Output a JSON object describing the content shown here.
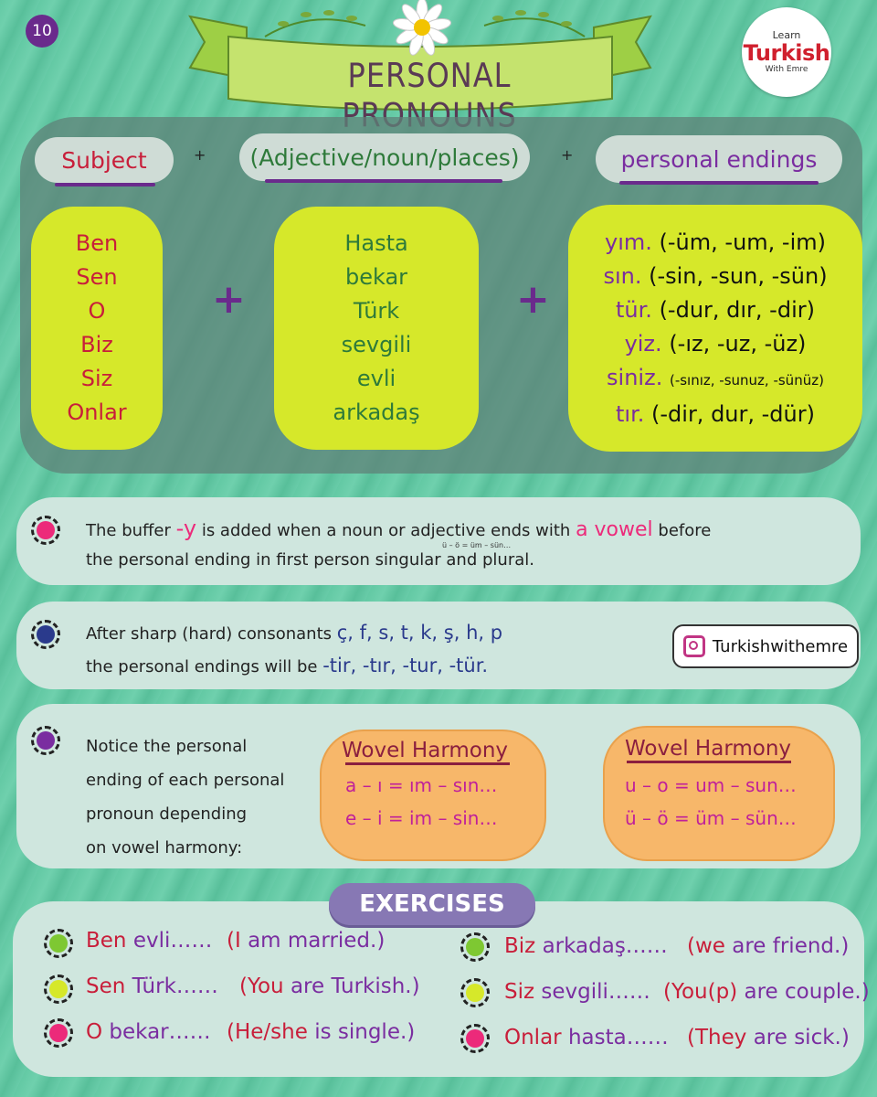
{
  "page_number": "10",
  "title": "PERSONAL PRONOUNS",
  "logo": {
    "line1": "Learn",
    "line2": "Turkish",
    "line3": "With Emre"
  },
  "header": {
    "subject": "Subject",
    "middle": "(Adjective/noun/places)",
    "endings": "personal endings",
    "plus": "+"
  },
  "pronouns": [
    "Ben",
    "Sen",
    "O",
    "Biz",
    "Siz",
    "Onlar"
  ],
  "words": [
    "Hasta",
    "bekar",
    "Türk",
    "sevgili",
    "evli",
    "arkadaş"
  ],
  "endings": [
    {
      "suffix": "yım.",
      "variants": "(-üm, -um, -im)"
    },
    {
      "suffix": "sın.",
      "variants": "(-sin, -sun, -sün)"
    },
    {
      "suffix": "tür.",
      "variants": "(-dur, dır, -dir)"
    },
    {
      "suffix": "yiz.",
      "variants": "(-ız, -uz, -üz)"
    },
    {
      "suffix": "siniz.",
      "variants": "(-sınız, -sunuz, -sünüz)"
    },
    {
      "suffix": "tır.",
      "variants": "(-dir, dur, -dür)"
    }
  ],
  "note1": {
    "pre": "The buffer ",
    "highlight1": "-y",
    "mid": " is added when a noun or adjective ends with ",
    "highlight2": "a vowel",
    "post": " before",
    "line2": "the personal ending in first person singular and plural.",
    "tiny": "ü – ö = üm – sün…"
  },
  "note2": {
    "line1_pre": "After sharp (hard) consonants ",
    "consonants": "ç, f, s, t, k, ş, h, p",
    "line2_pre": "the personal endings will be ",
    "endings": "-tir, -tır, -tur, -tür."
  },
  "instagram": "Turkishwithemre",
  "note3": [
    "Notice the personal",
    "ending of each personal",
    "pronoun depending",
    "on vowel harmony:"
  ],
  "harmony_boxes": [
    {
      "title": "Wovel Harmony",
      "lines": [
        "a – ı = ım – sın…",
        "e – i = im – sin…"
      ]
    },
    {
      "title": "Wovel Harmony",
      "lines": [
        "u – o = um – sun…",
        "ü – ö = üm – sün…"
      ]
    }
  ],
  "exercises_title": "EXERCISES",
  "exercises": [
    {
      "tr_a": "Ben",
      "tr_b": "evli……",
      "en_a": "(I",
      "en_b": "am married.)",
      "color": "#7ec832"
    },
    {
      "tr_a": "Sen",
      "tr_b": "Türk……",
      "en_a": "(You",
      "en_b": "are Turkish.)",
      "color": "#d6e82a"
    },
    {
      "tr_a": "O",
      "tr_b": "bekar……",
      "en_a": "(He/she",
      "en_b": "is single.)",
      "color": "#ec2a7a"
    },
    {
      "tr_a": "Biz",
      "tr_b": "arkadaş……",
      "en_a": "(we",
      "en_b": "are friend.)",
      "color": "#7ec832"
    },
    {
      "tr_a": "Siz",
      "tr_b": "sevgili……",
      "en_a": "(You(p)",
      "en_b": "are couple.)",
      "color": "#d6e82a"
    },
    {
      "tr_a": "Onlar",
      "tr_b": "hasta……",
      "en_a": "(They",
      "en_b": "are sick.)",
      "color": "#ec2a7a"
    }
  ],
  "colors": {
    "purple": "#6a2a8c",
    "yellow": "#d6e82a",
    "orange": "#f7b76a",
    "pink": "#ec2a7a",
    "navy": "#2a3a8c"
  }
}
